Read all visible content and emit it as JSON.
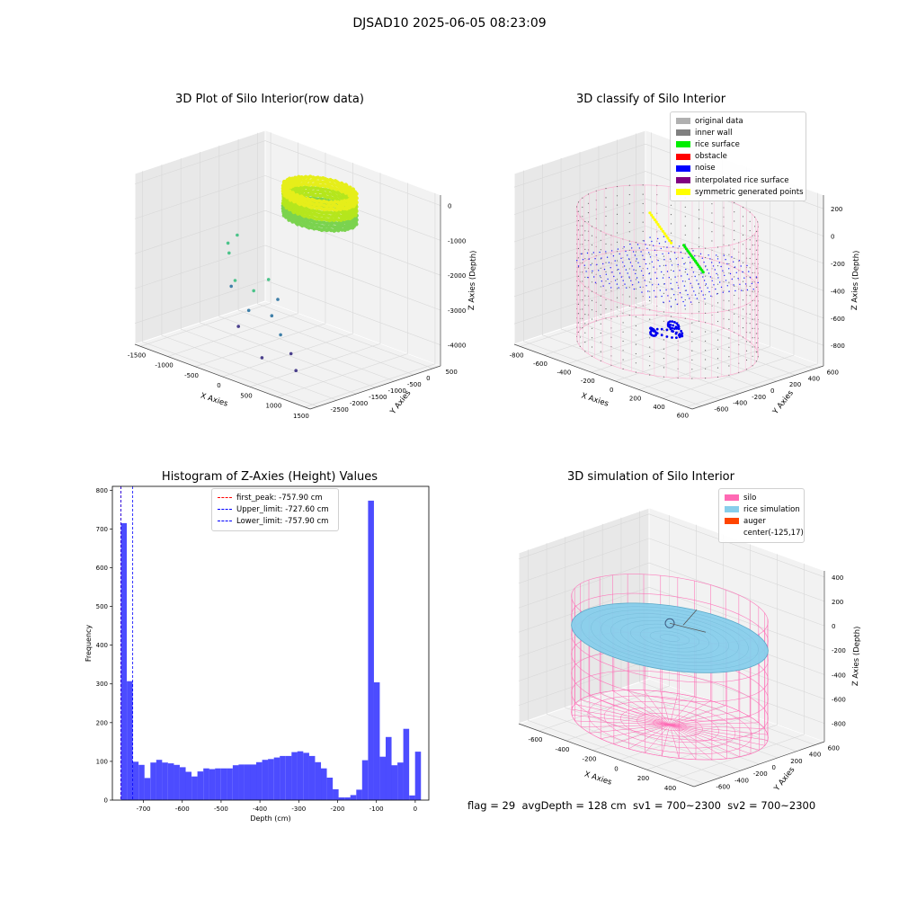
{
  "suptitle": "DJSAD10 2025-06-05 08:23:09",
  "stats_line": "flag = 29  avgDepth = 128 cm  sv1 = 700~2300  sv2 = 700~2300",
  "chart_data": [
    {
      "type": "scatter",
      "title": "3D Plot of Silo Interior(row data)",
      "xlabel": "X Axies",
      "ylabel": "Y Axies",
      "zlabel": "Z Axies (Depth)",
      "x_ticks": [
        -1500,
        -1000,
        -500,
        0,
        500,
        1000,
        1500
      ],
      "y_ticks": [
        -2500,
        -2000,
        -1500,
        -1000,
        -500,
        0,
        500
      ],
      "z_ticks": [
        -4000,
        -3000,
        -2000,
        -1000,
        0
      ],
      "xlim": [
        -1600,
        1600
      ],
      "ylim": [
        -2700,
        700
      ],
      "zlim": [
        -4600,
        300
      ],
      "cluster": {
        "center": [
          -125,
          17
        ],
        "radius_x": 550,
        "radius_y": 550,
        "z_top": -300,
        "z_bottom": -1100
      },
      "outliers": [
        {
          "x": -1200,
          "y": -600,
          "z": -2000
        },
        {
          "x": -1300,
          "y": -700,
          "z": -2250
        },
        {
          "x": -1350,
          "y": -600,
          "z": -2600
        },
        {
          "x": -1100,
          "y": -900,
          "z": -3300
        },
        {
          "x": -400,
          "y": -1800,
          "z": -2400
        },
        {
          "x": -200,
          "y": -1600,
          "z": -2650
        },
        {
          "x": 0,
          "y": -1500,
          "z": -2250
        },
        {
          "x": 100,
          "y": -1400,
          "z": -2800
        },
        {
          "x": -500,
          "y": -1300,
          "z": -3500
        },
        {
          "x": 200,
          "y": -1700,
          "z": -3100
        },
        {
          "x": 500,
          "y": -1900,
          "z": -3400
        },
        {
          "x": 900,
          "y": -2200,
          "z": -3600
        },
        {
          "x": -900,
          "y": -1000,
          "z": -4300
        },
        {
          "x": 300,
          "y": -2100,
          "z": -4100
        },
        {
          "x": 1200,
          "y": -2500,
          "z": -3800
        }
      ]
    },
    {
      "type": "scatter",
      "title": "3D classify of Silo Interior",
      "xlabel": "X Axies",
      "ylabel": "Y Axies",
      "zlabel": "Z Axies (Depth)",
      "x_ticks": [
        -800,
        -600,
        -400,
        -200,
        0,
        200,
        400,
        600
      ],
      "y_ticks": [
        -600,
        -400,
        -200,
        0,
        200,
        400,
        600
      ],
      "z_ticks": [
        -800,
        -600,
        -400,
        -200,
        0,
        200
      ],
      "xlim": [
        -850,
        650
      ],
      "ylim": [
        -700,
        700
      ],
      "zlim": [
        -950,
        300
      ],
      "silo": {
        "center": [
          -125,
          17
        ],
        "radius": 600,
        "z_top": 50,
        "z_bottom": -900
      },
      "legend": [
        {
          "label": "original data",
          "color": "#b0b0b0"
        },
        {
          "label": "inner wall",
          "color": "#808080"
        },
        {
          "label": "rice surface",
          "color": "#00ee00"
        },
        {
          "label": "obstacle",
          "color": "#ff0000"
        },
        {
          "label": "noise",
          "color": "#0000ff"
        },
        {
          "label": "interpolated rice surface",
          "color": "#800080"
        },
        {
          "label": "symmetric generated points",
          "color": "#ffff00"
        }
      ]
    },
    {
      "type": "bar",
      "title": "Histogram of Z-Axies (Height) Values",
      "xlabel": "Depth (cm)",
      "ylabel": "Frequency",
      "xlim": [
        -780,
        35
      ],
      "ylim": [
        0,
        810
      ],
      "x_ticks": [
        -700,
        -600,
        -500,
        -400,
        -300,
        -200,
        -100,
        0
      ],
      "y_ticks": [
        0,
        100,
        200,
        300,
        400,
        500,
        600,
        700,
        800
      ],
      "bin_start": -757.9,
      "bin_width": 15.15,
      "values": [
        715,
        307,
        99,
        91,
        57,
        97,
        104,
        97,
        95,
        91,
        85,
        73,
        61,
        74,
        82,
        80,
        82,
        82,
        82,
        90,
        92,
        92,
        92,
        98,
        104,
        106,
        110,
        114,
        114,
        124,
        126,
        122,
        114,
        98,
        82,
        58,
        28,
        7,
        7,
        13,
        27,
        103,
        773,
        304,
        112,
        163,
        90,
        97,
        184,
        12,
        125
      ],
      "bar_color": "#0000ff",
      "vlines": [
        {
          "label": "first_peak: -757.90 cm",
          "x": -757.9,
          "color": "#ff0000"
        },
        {
          "label": "Upper_limit: -727.60 cm",
          "x": -727.6,
          "color": "#0000ff"
        },
        {
          "label": "Lower_limit: -757.90 cm",
          "x": -757.9,
          "color": "#0000ff"
        }
      ],
      "legend_position": "top-center"
    },
    {
      "type": "surface",
      "title": "3D simulation of Silo Interior",
      "xlabel": "X Axies",
      "ylabel": "Y Axies",
      "zlabel": "Z Axies (Depth)",
      "x_ticks": [
        -600,
        -400,
        -200,
        0,
        200,
        400
      ],
      "y_ticks": [
        -600,
        -400,
        -200,
        0,
        200,
        400,
        600
      ],
      "z_ticks": [
        -800,
        -600,
        -400,
        -200,
        0,
        200,
        400
      ],
      "xlim": [
        -750,
        550
      ],
      "ylim": [
        -700,
        700
      ],
      "zlim": [
        -950,
        450
      ],
      "silo": {
        "center": [
          -125,
          17
        ],
        "radius": 600,
        "z_top": 50,
        "z_bottom": -900
      },
      "rice_surface_depth": -128,
      "legend": [
        {
          "label": "silo",
          "color": "#ff69b4"
        },
        {
          "label": "rice simulation",
          "color": "#87ceeb"
        },
        {
          "label": "auger",
          "color": "#ff4500"
        },
        {
          "label": "center(-125,17)",
          "color": ""
        }
      ]
    }
  ]
}
